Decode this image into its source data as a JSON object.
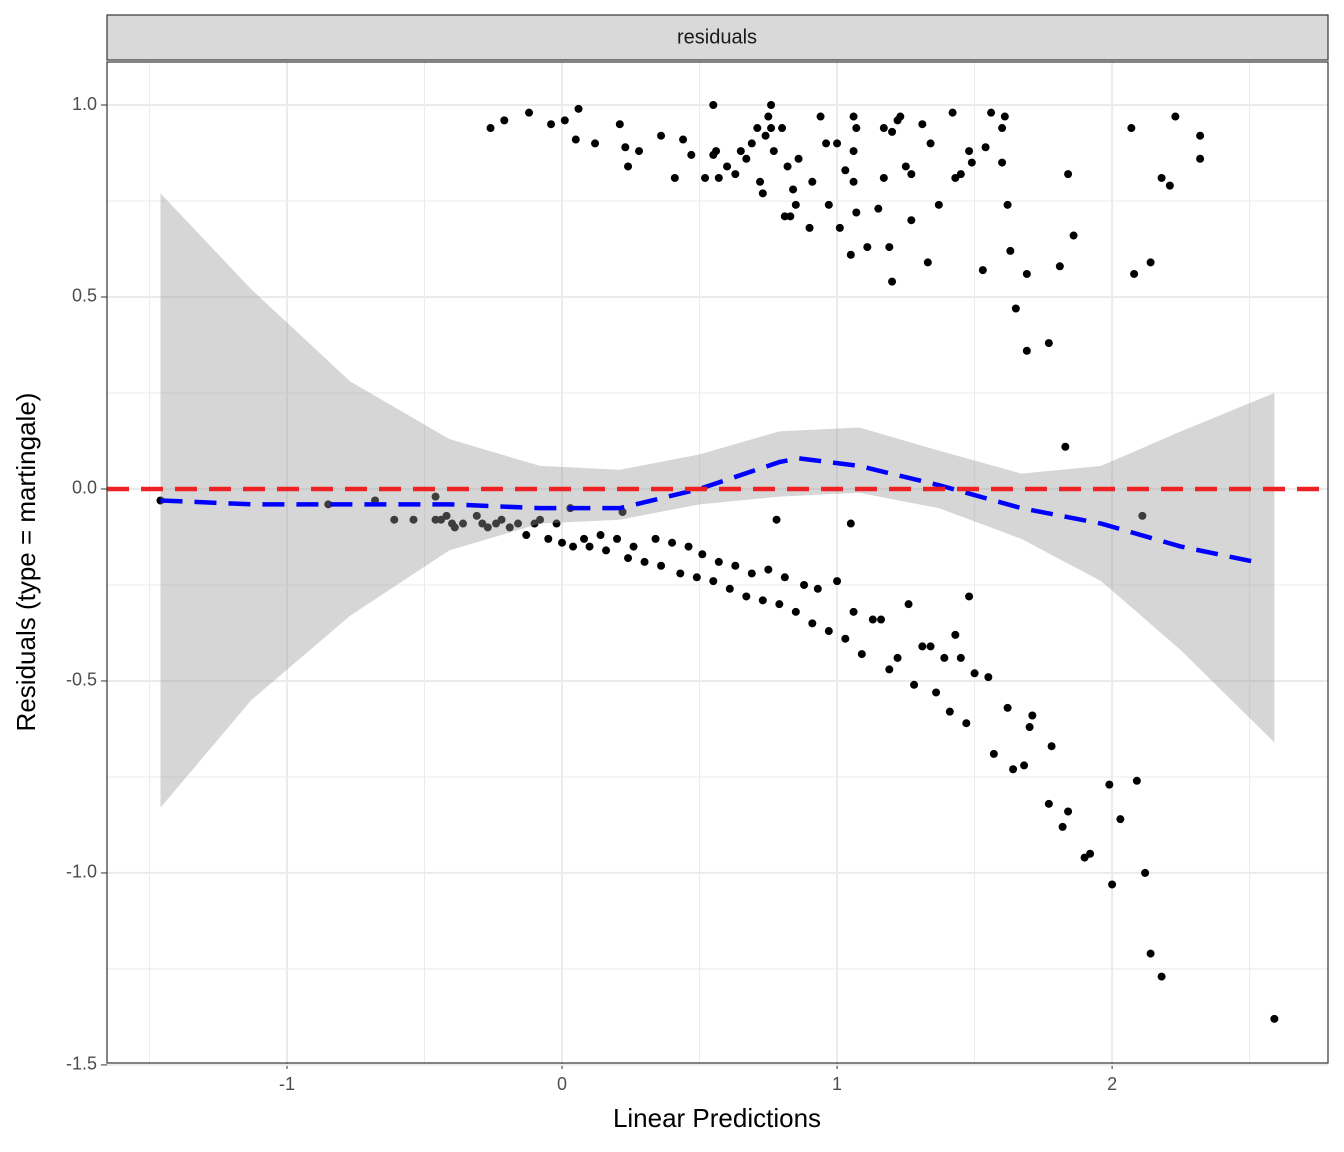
{
  "chart_data": {
    "type": "scatter",
    "facet_label": "residuals",
    "x_label": "Linear Predictions",
    "y_label": "Residuals (type = martingale)",
    "xlim": [
      -1.6545,
      2.785
    ],
    "ylim": [
      -1.495,
      1.112
    ],
    "xticks": [
      -1,
      0,
      1,
      2
    ],
    "yticks": [
      {
        "value": 1,
        "label": "1.0"
      },
      0.5,
      {
        "value": 0,
        "label": "0.0"
      },
      -0.5,
      {
        "value": -1,
        "label": "-1.0"
      },
      -1.5
    ],
    "x_minor_grid": [
      -1.5,
      -0.5,
      0.5,
      1.5,
      2.5
    ],
    "y_minor_grid": [
      -1.25,
      -0.75,
      -0.25,
      0.25,
      0.75
    ],
    "grid": true,
    "points": {
      "color": "#000000",
      "x": [
        -0.26,
        -0.21,
        -0.12,
        -0.04,
        0.01,
        0.06,
        0.05,
        0.12,
        0.21,
        0.23,
        0.24,
        0.28,
        0.36,
        0.41,
        0.44,
        0.47,
        0.52,
        0.55,
        0.55,
        0.56,
        0.57,
        0.6,
        0.63,
        0.65,
        0.67,
        0.69,
        0.71,
        0.72,
        0.73,
        0.74,
        0.75,
        0.76,
        0.76,
        0.77,
        0.8,
        0.82,
        0.81,
        0.83,
        0.84,
        0.85,
        0.86,
        0.9,
        0.91,
        0.94,
        0.96,
        0.97,
        1.0,
        1.01,
        1.03,
        1.05,
        1.06,
        1.06,
        1.06,
        1.07,
        1.07,
        1.11,
        1.15,
        1.17,
        1.17,
        1.19,
        1.2,
        1.2,
        1.22,
        1.23,
        1.25,
        1.27,
        1.27,
        1.31,
        1.34,
        1.33,
        1.37,
        1.42,
        1.43,
        1.45,
        1.48,
        1.49,
        1.53,
        1.54,
        1.56,
        1.6,
        1.61,
        1.6,
        1.62,
        1.63,
        1.65,
        1.69,
        1.69,
        1.77,
        1.81,
        1.84,
        1.86,
        1.83,
        2.07,
        2.08,
        2.14,
        2.18,
        2.21,
        2.23,
        2.32,
        2.32,
        -1.46,
        -0.85,
        -0.68,
        -0.61,
        -0.54,
        -0.46,
        -0.46,
        -0.44,
        -0.42,
        -0.4,
        -0.39,
        -0.36,
        -0.31,
        -0.29,
        -0.27,
        -0.24,
        -0.22,
        -0.19,
        -0.16,
        -0.13,
        -0.1,
        -0.08,
        -0.05,
        -0.02,
        0.0,
        0.03,
        0.04,
        0.08,
        0.1,
        0.14,
        0.16,
        0.2,
        0.22,
        0.24,
        0.26,
        0.3,
        0.34,
        0.36,
        0.4,
        0.43,
        0.46,
        0.49,
        0.51,
        0.55,
        0.57,
        0.61,
        0.63,
        0.67,
        0.69,
        0.73,
        0.75,
        0.78,
        0.79,
        0.81,
        0.85,
        0.88,
        0.91,
        0.93,
        0.97,
        1.0,
        1.03,
        1.05,
        1.06,
        1.09,
        1.13,
        1.16,
        1.19,
        1.22,
        1.26,
        1.28,
        1.31,
        1.34,
        1.36,
        1.39,
        1.41,
        1.43,
        1.45,
        1.47,
        1.48,
        1.5,
        1.55,
        1.57,
        1.62,
        1.64,
        1.68,
        1.71,
        1.7,
        1.78,
        1.77,
        1.82,
        1.84,
        1.9,
        1.92,
        1.99,
        2.0,
        2.03,
        2.09,
        2.11,
        2.12,
        2.14,
        2.18,
        2.59
      ],
      "y": [
        0.94,
        0.96,
        0.98,
        0.95,
        0.96,
        0.99,
        0.91,
        0.9,
        0.95,
        0.89,
        0.84,
        0.88,
        0.92,
        0.81,
        0.91,
        0.87,
        0.81,
        1.0,
        0.87,
        0.88,
        0.81,
        0.84,
        0.82,
        0.88,
        0.86,
        0.9,
        0.94,
        0.8,
        0.77,
        0.92,
        0.97,
        1.0,
        0.94,
        0.88,
        0.94,
        0.84,
        0.71,
        0.71,
        0.78,
        0.74,
        0.86,
        0.68,
        0.8,
        0.97,
        0.9,
        0.74,
        0.9,
        0.68,
        0.83,
        0.61,
        0.97,
        0.88,
        0.8,
        0.72,
        0.94,
        0.63,
        0.73,
        0.94,
        0.81,
        0.63,
        0.54,
        0.93,
        0.96,
        0.97,
        0.84,
        0.82,
        0.7,
        0.95,
        0.9,
        0.59,
        0.74,
        0.98,
        0.81,
        0.82,
        0.88,
        0.85,
        0.57,
        0.89,
        0.98,
        0.94,
        0.97,
        0.85,
        0.74,
        0.62,
        0.47,
        0.56,
        0.36,
        0.38,
        0.58,
        0.82,
        0.66,
        0.11,
        0.94,
        0.56,
        0.59,
        0.81,
        0.79,
        0.97,
        0.92,
        0.86,
        -0.03,
        -0.04,
        -0.03,
        -0.08,
        -0.08,
        -0.02,
        -0.08,
        -0.08,
        -0.07,
        -0.09,
        -0.1,
        -0.09,
        -0.07,
        -0.09,
        -0.1,
        -0.09,
        -0.08,
        -0.1,
        -0.09,
        -0.12,
        -0.09,
        -0.08,
        -0.13,
        -0.09,
        -0.14,
        -0.05,
        -0.15,
        -0.13,
        -0.15,
        -0.12,
        -0.16,
        -0.13,
        -0.06,
        -0.18,
        -0.15,
        -0.19,
        -0.13,
        -0.2,
        -0.14,
        -0.22,
        -0.15,
        -0.23,
        -0.17,
        -0.24,
        -0.19,
        -0.26,
        -0.2,
        -0.28,
        -0.22,
        -0.29,
        -0.21,
        -0.08,
        -0.3,
        -0.23,
        -0.32,
        -0.25,
        -0.35,
        -0.26,
        -0.37,
        -0.24,
        -0.39,
        -0.09,
        -0.32,
        -0.43,
        -0.34,
        -0.34,
        -0.47,
        -0.44,
        -0.3,
        -0.51,
        -0.41,
        -0.41,
        -0.53,
        -0.44,
        -0.58,
        -0.38,
        -0.44,
        -0.61,
        -0.28,
        -0.48,
        -0.49,
        -0.69,
        -0.57,
        -0.73,
        -0.72,
        -0.59,
        -0.62,
        -0.67,
        -0.82,
        -0.88,
        -0.84,
        -0.96,
        -0.95,
        -0.77,
        -1.03,
        -0.86,
        -0.76,
        -0.07,
        -1.0,
        -1.21,
        -1.27,
        -1.38
      ]
    },
    "band": {
      "color": "#999999",
      "x": [
        -1.46,
        -1.13,
        -0.77,
        -0.41,
        -0.08,
        0.21,
        0.5,
        0.79,
        1.08,
        1.37,
        1.67,
        1.96,
        2.25,
        2.59
      ],
      "upper": [
        0.77,
        0.52,
        0.28,
        0.13,
        0.06,
        0.05,
        0.09,
        0.15,
        0.16,
        0.1,
        0.04,
        0.06,
        0.15,
        0.25
      ],
      "lower": [
        -0.83,
        -0.55,
        -0.33,
        -0.16,
        -0.09,
        -0.08,
        -0.04,
        -0.02,
        -0.01,
        -0.05,
        -0.13,
        -0.24,
        -0.42,
        -0.66
      ]
    },
    "smooth": {
      "color": "#0000ff",
      "x": [
        -1.46,
        -1.13,
        -0.77,
        -0.41,
        -0.08,
        0.21,
        0.5,
        0.79,
        0.86,
        1.08,
        1.37,
        1.67,
        1.96,
        2.25,
        2.52
      ],
      "y": [
        -0.03,
        -0.04,
        -0.04,
        -0.04,
        -0.05,
        -0.05,
        0.0,
        0.07,
        0.08,
        0.06,
        0.01,
        -0.05,
        -0.09,
        -0.15,
        -0.19
      ]
    },
    "hline": {
      "y": 0,
      "color": "#ee2222"
    }
  }
}
